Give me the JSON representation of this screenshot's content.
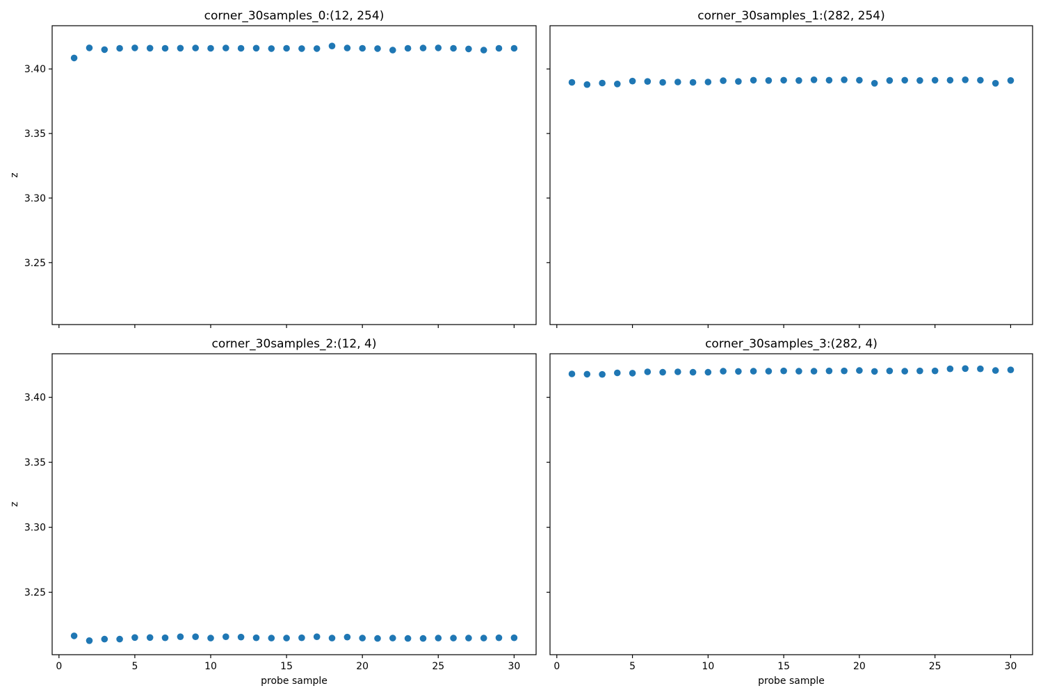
{
  "figure": {
    "background_color": "#ffffff",
    "marker_color": "#1f77b4",
    "spine_color": "#000000",
    "text_color": "#000000"
  },
  "chart_data": [
    {
      "type": "scatter",
      "title": "corner_30samples_0:(12, 254)",
      "xlabel": "",
      "ylabel": "z",
      "xlim": [
        -0.45,
        31.45
      ],
      "ylim": [
        3.202,
        3.4335
      ],
      "xticks": [
        0,
        5,
        10,
        15,
        20,
        25,
        30
      ],
      "xticklabels": [
        "0",
        "5",
        "10",
        "15",
        "20",
        "25",
        "30"
      ],
      "yticks": [
        3.25,
        3.3,
        3.35,
        3.4
      ],
      "yticklabels": [
        "3.25",
        "3.30",
        "3.35",
        "3.40"
      ],
      "show_xticklabels": false,
      "show_yticklabels": true,
      "grid": false,
      "x": [
        1,
        2,
        3,
        4,
        5,
        6,
        7,
        8,
        9,
        10,
        11,
        12,
        13,
        14,
        15,
        16,
        17,
        18,
        19,
        20,
        21,
        22,
        23,
        24,
        25,
        26,
        27,
        28,
        29,
        30
      ],
      "y": [
        3.4085,
        3.4163,
        3.415,
        3.416,
        3.4163,
        3.4161,
        3.416,
        3.4161,
        3.4162,
        3.416,
        3.4162,
        3.416,
        3.4161,
        3.4158,
        3.416,
        3.4158,
        3.4158,
        3.4178,
        3.4162,
        3.416,
        3.4158,
        3.4146,
        3.416,
        3.4162,
        3.4163,
        3.416,
        3.4155,
        3.4146,
        3.416,
        3.416
      ]
    },
    {
      "type": "scatter",
      "title": "corner_30samples_1:(282, 254)",
      "xlabel": "",
      "ylabel": "",
      "xlim": [
        -0.45,
        31.45
      ],
      "ylim": [
        3.202,
        3.4335
      ],
      "xticks": [
        0,
        5,
        10,
        15,
        20,
        25,
        30
      ],
      "xticklabels": [
        "0",
        "5",
        "10",
        "15",
        "20",
        "25",
        "30"
      ],
      "yticks": [
        3.25,
        3.3,
        3.35,
        3.4
      ],
      "yticklabels": [
        "3.25",
        "3.30",
        "3.35",
        "3.40"
      ],
      "show_xticklabels": false,
      "show_yticklabels": false,
      "grid": false,
      "x": [
        1,
        2,
        3,
        4,
        5,
        6,
        7,
        8,
        9,
        10,
        11,
        12,
        13,
        14,
        15,
        16,
        17,
        18,
        19,
        20,
        21,
        22,
        23,
        24,
        25,
        26,
        27,
        28,
        29,
        30
      ],
      "y": [
        3.3896,
        3.3879,
        3.3891,
        3.3884,
        3.3906,
        3.3903,
        3.3896,
        3.3899,
        3.3896,
        3.3899,
        3.3909,
        3.3903,
        3.3913,
        3.3911,
        3.3913,
        3.3911,
        3.3916,
        3.3913,
        3.3916,
        3.3913,
        3.3889,
        3.3911,
        3.3913,
        3.3911,
        3.3913,
        3.3913,
        3.3916,
        3.3913,
        3.3889,
        3.3911
      ]
    },
    {
      "type": "scatter",
      "title": "corner_30samples_2:(12, 4)",
      "xlabel": "probe sample",
      "ylabel": "z",
      "xlim": [
        -0.45,
        31.45
      ],
      "ylim": [
        3.202,
        3.4335
      ],
      "xticks": [
        0,
        5,
        10,
        15,
        20,
        25,
        30
      ],
      "xticklabels": [
        "0",
        "5",
        "10",
        "15",
        "20",
        "25",
        "30"
      ],
      "yticks": [
        3.25,
        3.3,
        3.35,
        3.4
      ],
      "yticklabels": [
        "3.25",
        "3.30",
        "3.35",
        "3.40"
      ],
      "show_xticklabels": true,
      "show_yticklabels": true,
      "grid": false,
      "x": [
        1,
        2,
        3,
        4,
        5,
        6,
        7,
        8,
        9,
        10,
        11,
        12,
        13,
        14,
        15,
        16,
        17,
        18,
        19,
        20,
        21,
        22,
        23,
        24,
        25,
        26,
        27,
        28,
        29,
        30
      ],
      "y": [
        3.2165,
        3.2128,
        3.214,
        3.214,
        3.2152,
        3.2152,
        3.215,
        3.2158,
        3.2158,
        3.2148,
        3.2158,
        3.2155,
        3.215,
        3.2148,
        3.2148,
        3.215,
        3.2158,
        3.2148,
        3.2155,
        3.2148,
        3.2145,
        3.2148,
        3.2145,
        3.2145,
        3.2148,
        3.2148,
        3.2148,
        3.2148,
        3.215,
        3.215
      ]
    },
    {
      "type": "scatter",
      "title": "corner_30samples_3:(282, 4)",
      "xlabel": "probe sample",
      "ylabel": "",
      "xlim": [
        -0.45,
        31.45
      ],
      "ylim": [
        3.202,
        3.4335
      ],
      "xticks": [
        0,
        5,
        10,
        15,
        20,
        25,
        30
      ],
      "xticklabels": [
        "0",
        "5",
        "10",
        "15",
        "20",
        "25",
        "30"
      ],
      "yticks": [
        3.25,
        3.3,
        3.35,
        3.4
      ],
      "yticklabels": [
        "3.25",
        "3.30",
        "3.35",
        "3.40"
      ],
      "show_xticklabels": true,
      "show_yticklabels": false,
      "grid": false,
      "x": [
        1,
        2,
        3,
        4,
        5,
        6,
        7,
        8,
        9,
        10,
        11,
        12,
        13,
        14,
        15,
        16,
        17,
        18,
        19,
        20,
        21,
        22,
        23,
        24,
        25,
        26,
        27,
        28,
        29,
        30
      ],
      "y": [
        3.418,
        3.4178,
        3.4176,
        3.4188,
        3.4186,
        3.4196,
        3.4193,
        3.4196,
        3.4193,
        3.4193,
        3.4201,
        3.4199,
        3.4201,
        3.4201,
        3.4203,
        3.4201,
        3.4201,
        3.4203,
        3.4203,
        3.4206,
        3.4199,
        3.4203,
        3.4201,
        3.4203,
        3.4203,
        3.4219,
        3.4221,
        3.4219,
        3.4206,
        3.4211
      ]
    }
  ]
}
